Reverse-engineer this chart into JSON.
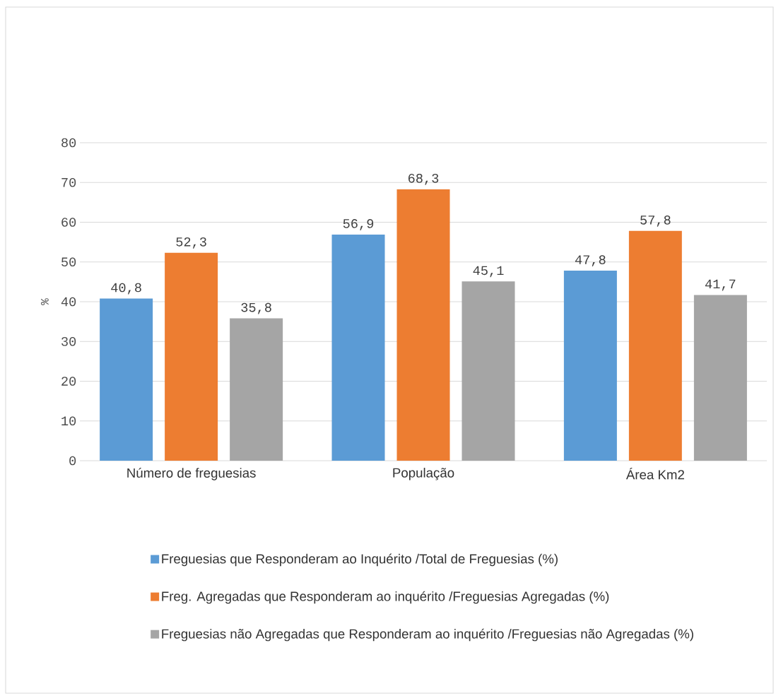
{
  "chart_data": {
    "type": "bar",
    "ylabel": "%",
    "categories": [
      "Número de freguesias",
      "População",
      "Área Km2"
    ],
    "series": [
      {
        "name": "Freguesias que Responderam ao Inquérito /Total de Freguesias (%)",
        "color": "#5b9bd5",
        "values": [
          40.8,
          56.9,
          47.8
        ],
        "value_labels": [
          "40,8",
          "56,9",
          "47,8"
        ]
      },
      {
        "name": "Freg. Agregadas que Responderam ao inquérito /Freguesias Agregadas (%)",
        "color": "#ed7d31",
        "values": [
          52.3,
          68.3,
          57.8
        ],
        "value_labels": [
          "52,3",
          "68,3",
          "57,8"
        ]
      },
      {
        "name": "Freguesias não Agregadas que Responderam ao inquérito /Freguesias não Agregadas (%)",
        "color": "#a5a5a5",
        "values": [
          35.8,
          45.1,
          41.7
        ],
        "value_labels": [
          "35,8",
          "45,1",
          "41,7"
        ]
      }
    ],
    "ylim": [
      0,
      80
    ],
    "yticks": [
      0,
      10,
      20,
      30,
      40,
      50,
      60,
      70,
      80
    ],
    "grid": "y",
    "legend": "bottom"
  }
}
